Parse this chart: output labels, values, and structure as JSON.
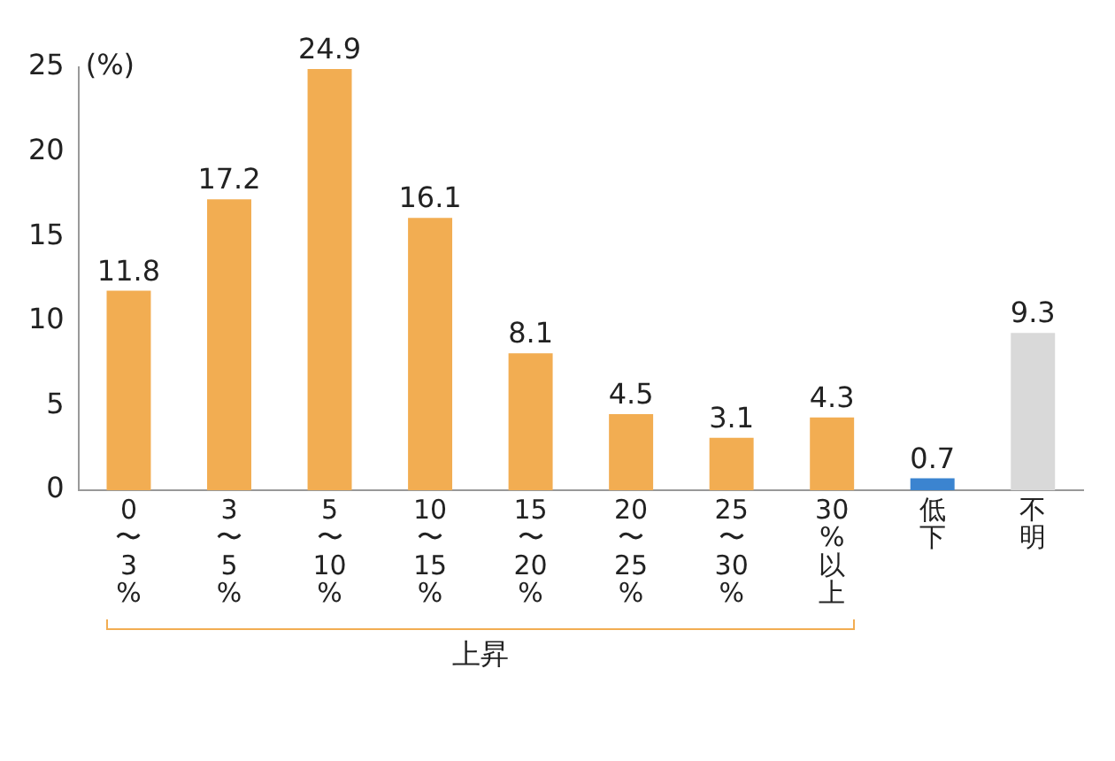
{
  "chart_data": {
    "type": "bar",
    "ylabel": "(%)",
    "categories": [
      "0〜3%",
      "3〜5%",
      "5〜10%",
      "10〜15%",
      "15〜20%",
      "20〜25%",
      "25〜30%",
      "30%以上",
      "低下",
      "不明"
    ],
    "values": [
      11.8,
      17.2,
      24.9,
      16.1,
      8.1,
      4.5,
      3.1,
      4.3,
      0.7,
      9.3
    ],
    "colors": [
      "#f2ad52",
      "#f2ad52",
      "#f2ad52",
      "#f2ad52",
      "#f2ad52",
      "#f2ad52",
      "#f2ad52",
      "#f2ad52",
      "#3b84d0",
      "#d9d9d9"
    ],
    "ylim": [
      0,
      25
    ],
    "yticks": [
      0,
      5,
      10,
      15,
      20,
      25
    ],
    "grid": false,
    "data_labels": true,
    "annotations": [
      "上昇"
    ]
  }
}
